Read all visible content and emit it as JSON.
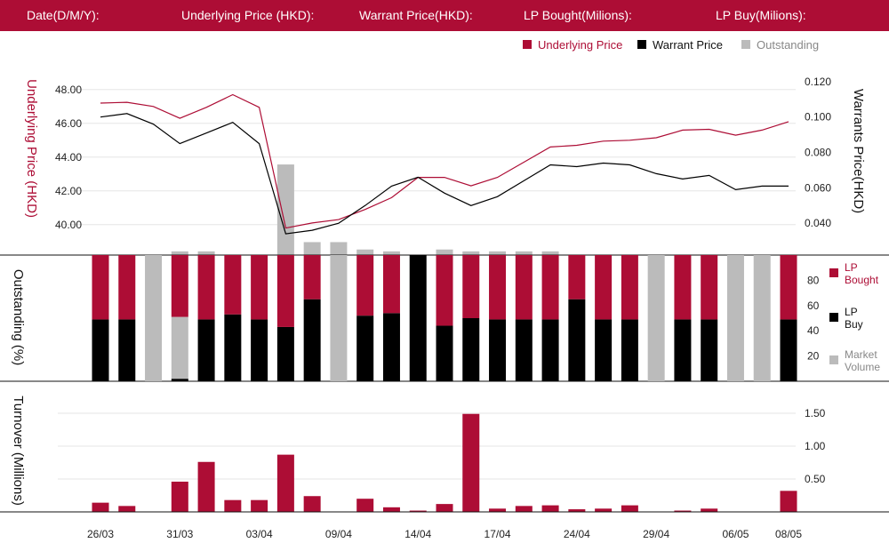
{
  "header": {
    "date_label": "Date(D/M/Y):",
    "underlying_label": "Underlying Price (HKD):",
    "warrant_label": "Warrant  Price(HKD):",
    "lp_bought_label": "LP Bought(Milions):",
    "lp_buy_label": "LP Buy(Milions):"
  },
  "colors": {
    "header_bg": "#ad0d35",
    "underlying": "#ad0d35",
    "warrant": "#000000",
    "outstanding": "#bbbbbb",
    "lp_bought": "#ad0d35",
    "lp_buy": "#000000"
  },
  "chart_data": [
    {
      "type": "line",
      "legend": [
        "Underlying Price",
        "Warrant  Price",
        "Outstanding"
      ],
      "legend_position": "top-right",
      "y_left_label": "Underlying Price (HKD)",
      "y_right_label": "Warrants  Price(HKD)",
      "y_left_ticks": [
        "48.00",
        "46.00",
        "44.00",
        "42.00",
        "40.00"
      ],
      "y_right_ticks": [
        "0.120",
        "0.100",
        "0.080",
        "0.060",
        "0.040"
      ],
      "y_left_range": [
        38.2,
        49.2
      ],
      "y_right_range": [
        0.022,
        0.127
      ],
      "underlying": [
        47.2,
        47.25,
        47.0,
        46.3,
        46.95,
        47.7,
        46.95,
        39.8,
        40.1,
        40.3,
        40.9,
        41.6,
        42.8,
        42.8,
        42.3,
        42.8,
        43.7,
        44.6,
        44.7,
        44.95,
        45.0,
        45.15,
        45.6,
        45.65,
        45.3,
        45.6,
        46.1
      ],
      "warrant": [
        0.1,
        0.102,
        0.096,
        0.085,
        0.091,
        0.097,
        0.085,
        0.034,
        0.036,
        0.04,
        0.05,
        0.061,
        0.066,
        0.057,
        0.05,
        0.055,
        0.064,
        0.073,
        0.072,
        0.074,
        0.073,
        0.068,
        0.065,
        0.067,
        0.059,
        0.061,
        0.061
      ],
      "outstanding_percent": [
        0,
        0,
        0,
        2,
        2,
        0,
        0,
        49,
        7,
        7,
        3,
        2,
        0,
        3,
        2,
        2,
        2,
        2,
        0,
        0,
        0,
        0,
        0,
        0,
        0,
        0,
        0
      ]
    },
    {
      "type": "bar",
      "stacked": true,
      "ylabel": "Outstanding (%)",
      "y_ticks": [
        "80",
        "60",
        "40",
        "20"
      ],
      "y_range": [
        0,
        100
      ],
      "legend": [
        "LP Bought",
        "LP Buy",
        "Market Volume"
      ],
      "lp_buy": [
        49,
        49,
        0,
        2,
        49,
        53,
        49,
        43,
        65,
        0,
        52,
        54,
        100,
        44,
        50,
        49,
        49,
        49,
        65,
        49,
        49,
        0,
        49,
        49,
        0,
        0,
        49
      ],
      "lp_bought": [
        51,
        51,
        0,
        49,
        51,
        47,
        51,
        57,
        35,
        0,
        48,
        46,
        0,
        56,
        50,
        51,
        51,
        51,
        35,
        51,
        51,
        0,
        51,
        51,
        0,
        0,
        51
      ],
      "market_volume": [
        0,
        0,
        100,
        49,
        0,
        0,
        0,
        0,
        0,
        100,
        0,
        0,
        0,
        0,
        0,
        0,
        0,
        0,
        0,
        0,
        0,
        100,
        0,
        0,
        100,
        100,
        0
      ]
    },
    {
      "type": "bar",
      "ylabel": "Turnover (Millions)",
      "y_ticks": [
        "1.50",
        "1.00",
        "0.50"
      ],
      "y_range": [
        0,
        1.5
      ],
      "values": [
        0.14,
        0.09,
        0,
        0.46,
        0.76,
        0.18,
        0.18,
        0.87,
        0.24,
        0,
        0.2,
        0.07,
        0.02,
        0.12,
        1.49,
        0.05,
        0.09,
        0.1,
        0.04,
        0.05,
        0.1,
        0,
        0.02,
        0.05,
        0,
        0,
        0.32
      ]
    }
  ],
  "x_axis": {
    "count": 27,
    "labels": [
      {
        "i": 0,
        "text": "26/03"
      },
      {
        "i": 3,
        "text": "31/03"
      },
      {
        "i": 6,
        "text": "03/04"
      },
      {
        "i": 9,
        "text": "09/04"
      },
      {
        "i": 12,
        "text": "14/04"
      },
      {
        "i": 15,
        "text": "17/04"
      },
      {
        "i": 18,
        "text": "24/04"
      },
      {
        "i": 21,
        "text": "29/04"
      },
      {
        "i": 24,
        "text": "06/05"
      },
      {
        "i": 26,
        "text": "08/05"
      }
    ]
  }
}
